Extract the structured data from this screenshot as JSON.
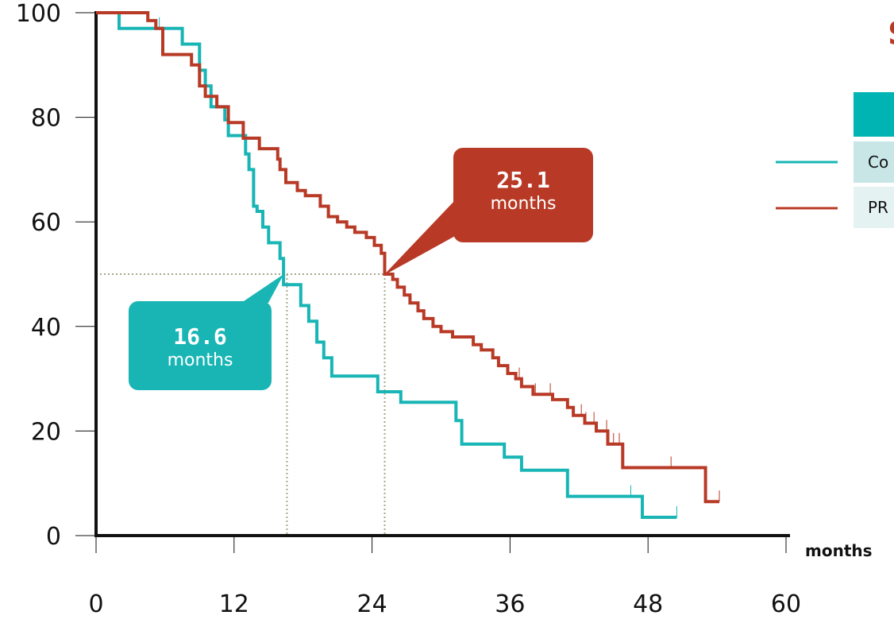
{
  "chart_data": {
    "type": "line",
    "xlabel": "months",
    "ylabel": "",
    "xlim": [
      0,
      60
    ],
    "ylim": [
      0,
      100
    ],
    "xticks": [
      0,
      12,
      24,
      36,
      48,
      60
    ],
    "yticks": [
      0,
      20,
      40,
      60,
      80,
      100
    ],
    "grid": false,
    "median_line_y": 50,
    "series": [
      {
        "name": "Co",
        "color": "#19b5b5",
        "median": 16.6,
        "points": [
          [
            0,
            100
          ],
          [
            2,
            97
          ],
          [
            7,
            97
          ],
          [
            7.5,
            94
          ],
          [
            8.8,
            94
          ],
          [
            9,
            89
          ],
          [
            9.5,
            86
          ],
          [
            10,
            82
          ],
          [
            11,
            82
          ],
          [
            11.2,
            79.5
          ],
          [
            11.5,
            76.5
          ],
          [
            12.6,
            76.5
          ],
          [
            13,
            73
          ],
          [
            13.3,
            70
          ],
          [
            13.7,
            63
          ],
          [
            14,
            62
          ],
          [
            14.5,
            59
          ],
          [
            15,
            56
          ],
          [
            16,
            53
          ],
          [
            16.3,
            48
          ],
          [
            17.5,
            48
          ],
          [
            17.8,
            44
          ],
          [
            18.5,
            41
          ],
          [
            19.2,
            37
          ],
          [
            19.8,
            34
          ],
          [
            20.5,
            30.5
          ],
          [
            23,
            30.5
          ],
          [
            24.5,
            27.5
          ],
          [
            26.5,
            25.5
          ],
          [
            31,
            25.5
          ],
          [
            31.3,
            22
          ],
          [
            31.8,
            17.5
          ],
          [
            35,
            17.5
          ],
          [
            35.5,
            15
          ],
          [
            37,
            12.5
          ],
          [
            40.5,
            12.5
          ],
          [
            41,
            7.5
          ],
          [
            47,
            7.5
          ],
          [
            47.5,
            3.5
          ],
          [
            50.5,
            3.5
          ]
        ],
        "censored": [
          5.5,
          46.5,
          50.5
        ]
      },
      {
        "name": "PR",
        "color": "#b83a26",
        "median": 25.1,
        "points": [
          [
            0,
            100
          ],
          [
            4,
            100
          ],
          [
            4.5,
            98.5
          ],
          [
            5.2,
            97
          ],
          [
            5.8,
            92
          ],
          [
            8,
            92
          ],
          [
            8.3,
            90
          ],
          [
            9,
            86
          ],
          [
            9.5,
            84
          ],
          [
            10.5,
            82
          ],
          [
            11.5,
            79
          ],
          [
            12.8,
            76
          ],
          [
            14,
            76
          ],
          [
            14.2,
            74
          ],
          [
            15.5,
            74
          ],
          [
            15.8,
            72
          ],
          [
            16,
            70
          ],
          [
            16.5,
            67.5
          ],
          [
            17.5,
            66
          ],
          [
            18.2,
            65
          ],
          [
            19.5,
            63
          ],
          [
            20.2,
            61
          ],
          [
            21,
            60
          ],
          [
            21.8,
            59
          ],
          [
            22.5,
            58
          ],
          [
            23.5,
            57
          ],
          [
            24.2,
            55.5
          ],
          [
            24.8,
            54
          ],
          [
            25.1,
            50
          ],
          [
            25.8,
            49
          ],
          [
            26.2,
            47.5
          ],
          [
            26.8,
            46
          ],
          [
            27.3,
            44.5
          ],
          [
            28,
            43
          ],
          [
            28.5,
            41.5
          ],
          [
            29.3,
            40
          ],
          [
            30,
            39
          ],
          [
            31,
            38
          ],
          [
            32,
            38
          ],
          [
            32.8,
            36.5
          ],
          [
            33.5,
            35.5
          ],
          [
            34.5,
            34
          ],
          [
            35,
            32.5
          ],
          [
            35.8,
            31
          ],
          [
            36.5,
            30
          ],
          [
            37,
            28.5
          ],
          [
            38,
            27
          ],
          [
            39.2,
            27
          ],
          [
            39.7,
            26
          ],
          [
            41,
            24.5
          ],
          [
            41.5,
            23
          ],
          [
            42.5,
            21.5
          ],
          [
            43.5,
            20
          ],
          [
            44.5,
            17.5
          ],
          [
            45.5,
            17.5
          ],
          [
            45.8,
            13
          ],
          [
            52.5,
            13
          ],
          [
            53,
            6.5
          ],
          [
            54.2,
            6.5
          ]
        ],
        "censored": [
          36.8,
          38.2,
          39.5,
          42.2,
          42.6,
          43.3,
          44.4,
          45.0,
          45.5,
          50.0,
          54.2
        ]
      }
    ]
  },
  "callouts": {
    "control": {
      "value": "16.6",
      "unit": "months",
      "color": "#19b5b5"
    },
    "prrt": {
      "value": "25.1",
      "unit": "months",
      "color": "#b83a26"
    }
  },
  "legend": {
    "title_partial": "S",
    "rows": [
      {
        "label": "Co",
        "color": "#19b5b5"
      },
      {
        "label": "PR",
        "color": "#b83a26"
      }
    ]
  },
  "x_unit_label": "months",
  "colors": {
    "teal": "#19b5b5",
    "red": "#b83a26",
    "reference": "#a8a68a",
    "axis": "#111111"
  }
}
